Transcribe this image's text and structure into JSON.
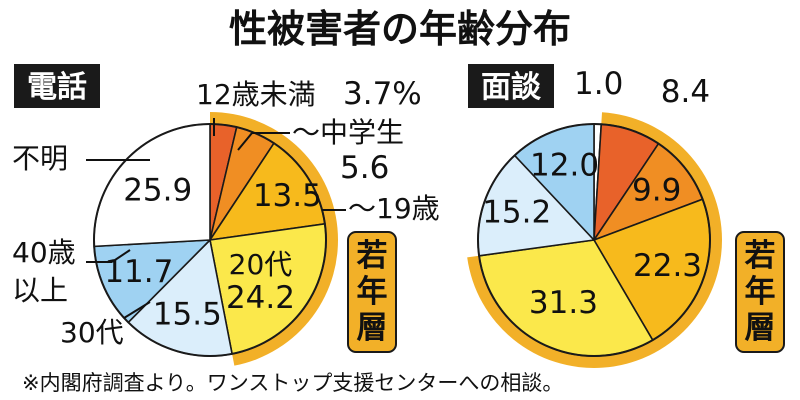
{
  "title": "性被害者の年齢分布",
  "footnote": "※内閣府調査より。ワンストップ支援センターへの相談。",
  "colors": {
    "c_under12": "#e8622a",
    "c_middle": "#f08e23",
    "c_teen": "#f7ba1c",
    "c_20s": "#fbe84b",
    "c_30s": "#dbeefb",
    "c_40plus": "#9fd2f2",
    "c_unknown": "#ffffff",
    "c_young_ring": "#f2b028",
    "c_tag_bg": "#1a1a1a"
  },
  "young_label": "若年層",
  "chart_data": [
    {
      "type": "pie",
      "title": "電話",
      "slices": [
        {
          "label": "12歳未満",
          "value": 3.7,
          "value_text": "3.7%",
          "color_key": "c_under12"
        },
        {
          "label": "～中学生",
          "value": 5.6,
          "value_text": "5.6",
          "color_key": "c_middle"
        },
        {
          "label": "～19歳",
          "value": 13.5,
          "value_text": "13.5",
          "color_key": "c_teen"
        },
        {
          "label": "20代",
          "value": 24.2,
          "value_text": "24.2",
          "color_key": "c_20s"
        },
        {
          "label": "30代",
          "value": 15.5,
          "value_text": "15.5",
          "color_key": "c_30s"
        },
        {
          "label": "40歳以上",
          "value": 11.7,
          "value_text": "11.7",
          "color_key": "c_40plus"
        },
        {
          "label": "不明",
          "value": 25.9,
          "value_text": "25.9",
          "color_key": "c_unknown"
        }
      ]
    },
    {
      "type": "pie",
      "title": "面談",
      "slices": [
        {
          "value": 1.0,
          "value_text": "1.0",
          "color_key": "c_unknown"
        },
        {
          "value": 8.4,
          "value_text": "8.4",
          "color_key": "c_under12"
        },
        {
          "value": 9.9,
          "value_text": "9.9",
          "color_key": "c_middle"
        },
        {
          "value": 22.3,
          "value_text": "22.3",
          "color_key": "c_teen"
        },
        {
          "value": 31.3,
          "value_text": "31.3",
          "color_key": "c_20s"
        },
        {
          "value": 15.2,
          "value_text": "15.2",
          "color_key": "c_30s"
        },
        {
          "value": 12.0,
          "value_text": "12.0",
          "color_key": "c_40plus"
        }
      ]
    }
  ],
  "panel_labels": {
    "phone_under12": "12歳未満",
    "phone_under12_val": "3.7%",
    "phone_middle": "～中学生",
    "phone_middle_val": "5.6",
    "phone_teen": "～19歳",
    "phone_20s": "20代",
    "phone_30s": "30代",
    "phone_40plus_a": "40歳",
    "phone_40plus_b": "以上",
    "phone_unknown": "不明"
  }
}
